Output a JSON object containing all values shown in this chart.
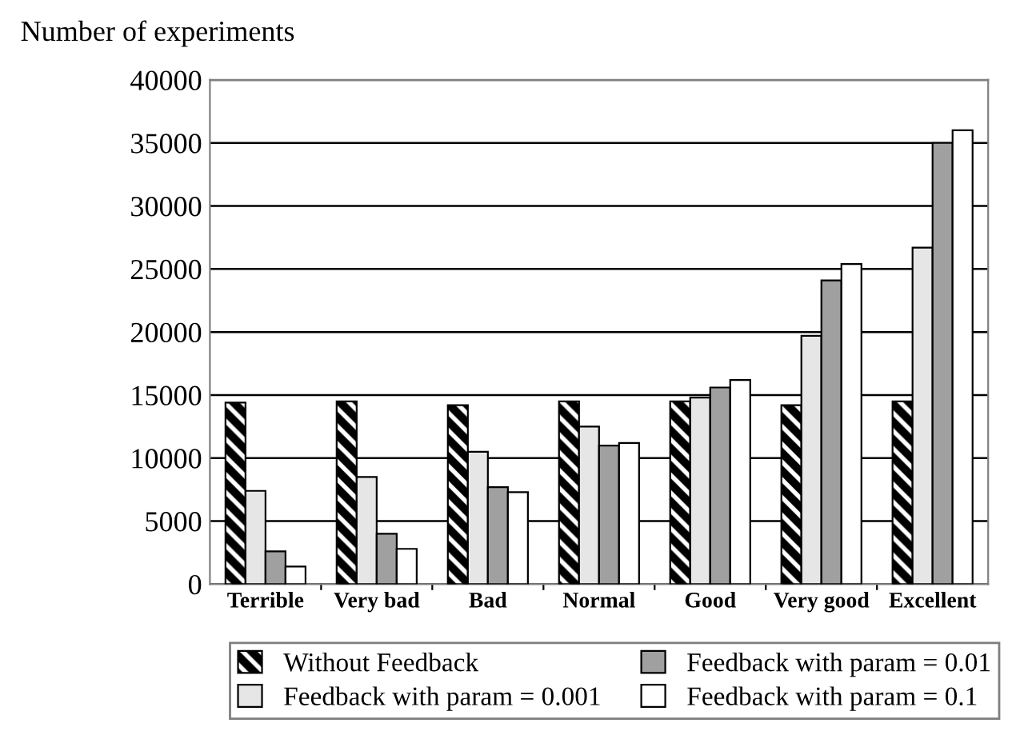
{
  "chart_data": {
    "type": "bar",
    "ylabel": "Number of experiments",
    "categories": [
      "Terrible",
      "Very bad",
      "Bad",
      "Normal",
      "Good",
      "Very good",
      "Excellent"
    ],
    "series": [
      {
        "name": "Without Feedback",
        "color": "#000000",
        "values": [
          14400,
          14500,
          14200,
          14500,
          14500,
          14200,
          14500
        ]
      },
      {
        "name": "Feedback with param = 0.001",
        "color": "#e6e6e6",
        "values": [
          7400,
          8500,
          10500,
          12500,
          14800,
          19700,
          26700
        ]
      },
      {
        "name": "Feedback with param = 0.01",
        "color": "#a0a0a0",
        "values": [
          2600,
          4000,
          7700,
          11000,
          15600,
          24100,
          35000
        ]
      },
      {
        "name": "Feedback with param = 0.1",
        "color": "#ffffff",
        "values": [
          1400,
          2800,
          7300,
          11200,
          16200,
          25400,
          36000
        ]
      }
    ],
    "ylim": [
      0,
      40000
    ],
    "yticks": [
      0,
      5000,
      10000,
      15000,
      20000,
      25000,
      30000,
      35000,
      40000
    ],
    "grid": "y",
    "legend": "bottom"
  }
}
